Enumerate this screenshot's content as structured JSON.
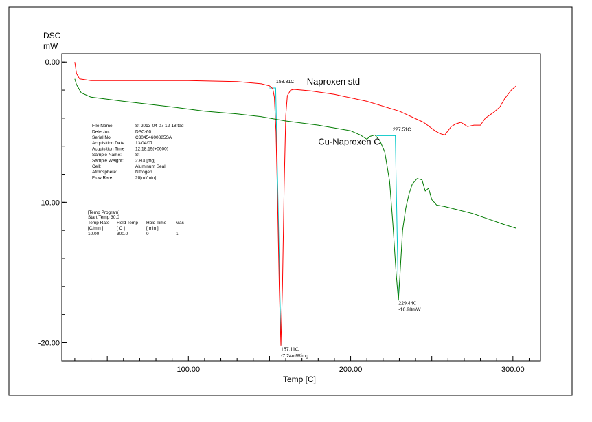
{
  "chart_data": {
    "type": "line",
    "ylabel_line1": "DSC",
    "ylabel_line2": "mW",
    "xlabel": "Temp  [C]",
    "xlim": [
      22,
      317
    ],
    "ylim": [
      -21.3,
      0.6
    ],
    "x_ticks": [
      100,
      200,
      300
    ],
    "x_tick_labels": [
      "100.00",
      "200.00",
      "300.00"
    ],
    "y_ticks": [
      0,
      -10,
      -20
    ],
    "y_tick_labels": [
      "0.00",
      "-10.00",
      "-20.00"
    ],
    "grid": false,
    "series": [
      {
        "name": "Naproxen std",
        "color": "#ff0000",
        "points": [
          [
            30,
            0
          ],
          [
            31,
            -0.8
          ],
          [
            33,
            -1.2
          ],
          [
            40,
            -1.32
          ],
          [
            60,
            -1.32
          ],
          [
            100,
            -1.32
          ],
          [
            130,
            -1.4
          ],
          [
            145,
            -1.55
          ],
          [
            150,
            -1.7
          ],
          [
            152,
            -1.9
          ],
          [
            153,
            -2.5
          ],
          [
            154,
            -5
          ],
          [
            155,
            -10
          ],
          [
            156,
            -16
          ],
          [
            157,
            -20.2
          ],
          [
            158,
            -16
          ],
          [
            159,
            -9
          ],
          [
            160,
            -3.8
          ],
          [
            161,
            -2.4
          ],
          [
            163,
            -2.0
          ],
          [
            165,
            -1.95
          ],
          [
            175,
            -2.05
          ],
          [
            190,
            -2.3
          ],
          [
            210,
            -2.8
          ],
          [
            230,
            -3.5
          ],
          [
            245,
            -4.3
          ],
          [
            252,
            -4.9
          ],
          [
            255,
            -5.1
          ],
          [
            258,
            -5.2
          ],
          [
            262,
            -4.6
          ],
          [
            265,
            -4.4
          ],
          [
            268,
            -4.3
          ],
          [
            272,
            -4.6
          ],
          [
            276,
            -4.5
          ],
          [
            280,
            -4.5
          ],
          [
            283,
            -4.0
          ],
          [
            288,
            -3.6
          ],
          [
            292,
            -3.2
          ],
          [
            295,
            -2.6
          ],
          [
            299,
            -2.0
          ],
          [
            302,
            -1.7
          ]
        ]
      },
      {
        "name": "Cu-Naproxen C",
        "color": "#007a00",
        "points": [
          [
            30,
            -1.2
          ],
          [
            31,
            -1.6
          ],
          [
            34,
            -2.2
          ],
          [
            40,
            -2.5
          ],
          [
            60,
            -2.8
          ],
          [
            90,
            -3.2
          ],
          [
            110,
            -3.5
          ],
          [
            130,
            -3.7
          ],
          [
            145,
            -3.9
          ],
          [
            160,
            -4.2
          ],
          [
            180,
            -4.5
          ],
          [
            200,
            -4.9
          ],
          [
            206,
            -5.2
          ],
          [
            210,
            -5.5
          ],
          [
            212,
            -5.3
          ],
          [
            215,
            -5.2
          ],
          [
            218,
            -5.6
          ],
          [
            221,
            -6.4
          ],
          [
            224,
            -8.5
          ],
          [
            226,
            -11.5
          ],
          [
            228,
            -15
          ],
          [
            229.44,
            -16.98
          ],
          [
            230.5,
            -15
          ],
          [
            232,
            -12
          ],
          [
            234,
            -10.4
          ],
          [
            236,
            -9.4
          ],
          [
            238,
            -8.7
          ],
          [
            241,
            -8.3
          ],
          [
            244,
            -8.4
          ],
          [
            246,
            -9.2
          ],
          [
            248,
            -9.0
          ],
          [
            250,
            -9.8
          ],
          [
            253,
            -10.2
          ],
          [
            258,
            -10.3
          ],
          [
            265,
            -10.5
          ],
          [
            275,
            -10.8
          ],
          [
            285,
            -11.2
          ],
          [
            295,
            -11.6
          ],
          [
            302,
            -11.85
          ]
        ]
      }
    ],
    "baselines": [
      {
        "color": "#00c8c8",
        "points": [
          [
            150,
            -1.85
          ],
          [
            153.81,
            -1.85
          ],
          [
            157.11,
            -20.2
          ]
        ]
      },
      {
        "color": "#00c8c8",
        "points": [
          [
            216,
            -5.25
          ],
          [
            227.51,
            -5.25
          ],
          [
            229.44,
            -16.98
          ]
        ]
      }
    ],
    "series_labels": [
      {
        "text": "Naproxen std",
        "x": 173,
        "y": -1.6
      },
      {
        "text": "Cu-Naproxen C",
        "x": 180,
        "y": -5.9
      }
    ],
    "annotations": [
      {
        "text": "153.81C",
        "x": 154,
        "y": -1.5
      },
      {
        "text": "157.11C",
        "x": 157,
        "y": -20.6
      },
      {
        "text": "-7.24mW/mg",
        "x": 157,
        "y": -21.05
      },
      {
        "text": "227.51C",
        "x": 226,
        "y": -4.9
      },
      {
        "text": "229.44C",
        "x": 229.5,
        "y": -17.3
      },
      {
        "text": "-16.98mW",
        "x": 229.5,
        "y": -17.75
      }
    ],
    "info_fields": [
      {
        "label": "File Name:",
        "value": "St 2013-04-07 12-18.tad"
      },
      {
        "label": "Detector:",
        "value": "DSC-60"
      },
      {
        "label": "Serial No:",
        "value": "C30454600885SA"
      },
      {
        "label": "Acquisition Date",
        "value": "13/04/07"
      },
      {
        "label": "Acquisition Time",
        "value": "12:18:19(+0600)"
      },
      {
        "label": "Sample Name:",
        "value": "St"
      },
      {
        "label": "Sample Weight:",
        "value": "2.800[mg]"
      },
      {
        "label": "Cell:",
        "value": "Aluminum Seal"
      },
      {
        "label": "Atmosphere:",
        "value": "Nitrogen"
      },
      {
        "label": "Flow Rate:",
        "value": "20[ml/min]"
      }
    ],
    "temp_program": {
      "title": "[Temp Program]",
      "start": "Start Temp   30.0",
      "headers": [
        "Temp Rate",
        "Hold Temp",
        "Hold Time",
        "Gas"
      ],
      "units": [
        "[C/min ]",
        "[  C  ]",
        "[  min  ]",
        ""
      ],
      "row": [
        "10.00",
        "300.0",
        "0",
        "1"
      ]
    }
  }
}
